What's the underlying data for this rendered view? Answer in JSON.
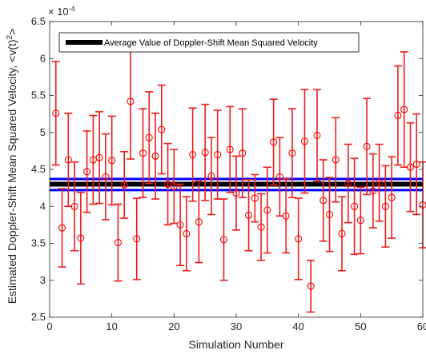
{
  "chart_data": {
    "type": "scatter",
    "title": "",
    "xlabel": "Simulation Number",
    "ylabel": "Estimated Doppler-Shift Mean Squared Velocity, <v(t)",
    "ylabel_sup": "2",
    "ylabel_tail": ">",
    "exponent_label": "× 10",
    "exponent_power": "-4",
    "xlim": [
      0,
      60
    ],
    "ylim": [
      2.5,
      6.5
    ],
    "xticks": [
      "0",
      "10",
      "20",
      "30",
      "40",
      "50",
      "60"
    ],
    "yticks": [
      "2.5",
      "3",
      "3.5",
      "4",
      "4.5",
      "5",
      "5.5",
      "6",
      "6.5"
    ],
    "grid": false,
    "legend": {
      "placement": "top-left",
      "entries": [
        {
          "label": "Average Value of Doppler-Shift Mean Squared Velocity",
          "color": "#000000"
        }
      ]
    },
    "scale_factor": 0.0001,
    "mean_line": {
      "y": 4.3,
      "color": "#000000"
    },
    "band_lines": [
      {
        "y": 4.37,
        "color": "#0000ff"
      },
      {
        "y": 4.22,
        "color": "#0000ff"
      }
    ],
    "marker_color": "#ff0000",
    "errorbar_color": "#ee1c1c",
    "x": [
      1,
      2,
      3,
      4,
      5,
      6,
      7,
      8,
      9,
      10,
      11,
      12,
      13,
      14,
      15,
      16,
      17,
      18,
      19,
      20,
      21,
      22,
      23,
      24,
      25,
      26,
      27,
      28,
      29,
      30,
      31,
      32,
      33,
      34,
      35,
      36,
      37,
      38,
      39,
      40,
      41,
      42,
      43,
      44,
      45,
      46,
      47,
      48,
      49,
      50,
      51,
      52,
      53,
      54,
      55,
      56,
      57,
      58,
      59,
      60
    ],
    "y": [
      5.26,
      3.71,
      4.63,
      4.0,
      3.57,
      4.47,
      4.63,
      4.66,
      4.4,
      4.62,
      3.51,
      4.29,
      5.42,
      3.56,
      4.72,
      4.93,
      4.68,
      5.04,
      4.3,
      4.27,
      3.75,
      3.63,
      4.7,
      3.79,
      4.73,
      4.41,
      4.7,
      3.55,
      4.77,
      4.18,
      4.72,
      3.88,
      4.11,
      3.72,
      3.95,
      4.87,
      4.4,
      3.87,
      4.72,
      3.56,
      4.88,
      2.92,
      4.96,
      4.08,
      3.89,
      4.63,
      3.63,
      4.31,
      4.0,
      3.81,
      4.81,
      4.21,
      4.32,
      4.0,
      4.12,
      5.23,
      5.31,
      4.53,
      4.57,
      4.02
    ],
    "err": [
      0.7,
      0.53,
      0.63,
      0.6,
      0.62,
      0.55,
      0.6,
      0.62,
      0.58,
      0.6,
      0.52,
      0.45,
      0.78,
      0.55,
      0.6,
      0.62,
      0.58,
      0.6,
      0.55,
      0.5,
      0.55,
      0.5,
      0.63,
      0.55,
      0.65,
      0.52,
      0.6,
      0.55,
      0.58,
      0.5,
      0.6,
      0.48,
      0.32,
      0.45,
      0.58,
      0.58,
      0.53,
      0.5,
      0.6,
      0.55,
      0.7,
      0.35,
      0.62,
      0.55,
      0.5,
      0.57,
      0.5,
      0.53,
      0.65,
      0.45,
      0.65,
      0.5,
      0.52,
      0.55,
      0.55,
      0.67,
      0.78,
      0.6,
      0.68,
      0.58
    ]
  }
}
